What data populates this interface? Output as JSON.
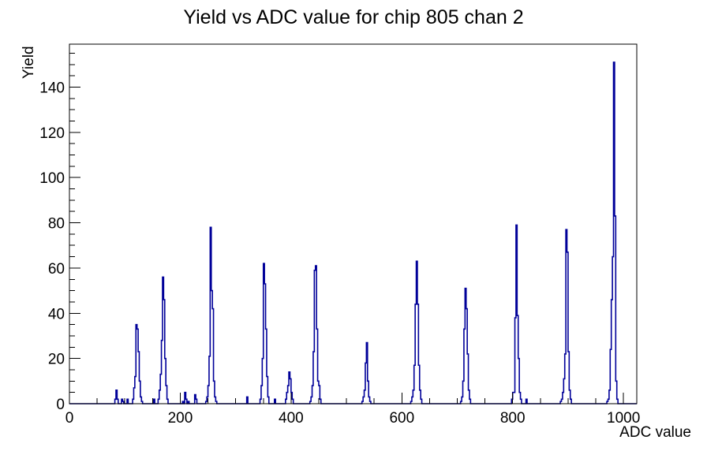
{
  "title": "Yield vs ADC value for chip 805 chan 2",
  "chart_data": {
    "type": "bar",
    "title": "Yield vs ADC value for chip 805 chan 2",
    "xlabel": "ADC value",
    "ylabel": "Yield",
    "xlim": [
      0,
      1024
    ],
    "ylim": [
      0,
      159
    ],
    "x_major_ticks": [
      0,
      200,
      400,
      600,
      800,
      1000
    ],
    "x_minor_step": 50,
    "y_major_ticks": [
      0,
      20,
      40,
      60,
      80,
      100,
      120,
      140
    ],
    "y_minor_step": 5,
    "grid": "off",
    "legend": "none",
    "bin_width": 2,
    "line_color": "#000099",
    "frame_color": "#000000",
    "bins": [
      [
        82,
        2
      ],
      [
        84,
        6
      ],
      [
        86,
        2
      ],
      [
        94,
        2
      ],
      [
        96,
        1
      ],
      [
        104,
        2
      ],
      [
        114,
        2
      ],
      [
        116,
        7
      ],
      [
        118,
        12
      ],
      [
        120,
        35
      ],
      [
        122,
        33
      ],
      [
        124,
        23
      ],
      [
        126,
        10
      ],
      [
        128,
        3
      ],
      [
        130,
        1
      ],
      [
        152,
        2
      ],
      [
        160,
        2
      ],
      [
        162,
        6
      ],
      [
        164,
        13
      ],
      [
        166,
        28
      ],
      [
        168,
        56
      ],
      [
        170,
        46
      ],
      [
        172,
        20
      ],
      [
        174,
        8
      ],
      [
        176,
        2
      ],
      [
        204,
        1
      ],
      [
        208,
        5
      ],
      [
        210,
        2
      ],
      [
        214,
        1
      ],
      [
        226,
        4
      ],
      [
        228,
        2
      ],
      [
        246,
        1
      ],
      [
        248,
        3
      ],
      [
        250,
        8
      ],
      [
        252,
        21
      ],
      [
        254,
        78
      ],
      [
        256,
        50
      ],
      [
        258,
        42
      ],
      [
        260,
        10
      ],
      [
        262,
        3
      ],
      [
        264,
        1
      ],
      [
        320,
        3
      ],
      [
        344,
        2
      ],
      [
        346,
        8
      ],
      [
        348,
        20
      ],
      [
        350,
        62
      ],
      [
        352,
        53
      ],
      [
        354,
        33
      ],
      [
        356,
        12
      ],
      [
        358,
        3
      ],
      [
        370,
        2
      ],
      [
        390,
        2
      ],
      [
        392,
        5
      ],
      [
        394,
        8
      ],
      [
        396,
        14
      ],
      [
        398,
        11
      ],
      [
        400,
        5
      ],
      [
        402,
        2
      ],
      [
        434,
        1
      ],
      [
        436,
        3
      ],
      [
        438,
        8
      ],
      [
        440,
        23
      ],
      [
        442,
        59
      ],
      [
        444,
        61
      ],
      [
        446,
        33
      ],
      [
        448,
        10
      ],
      [
        450,
        8
      ],
      [
        452,
        2
      ],
      [
        528,
        1
      ],
      [
        530,
        3
      ],
      [
        532,
        6
      ],
      [
        534,
        18
      ],
      [
        536,
        27
      ],
      [
        538,
        10
      ],
      [
        540,
        3
      ],
      [
        542,
        1
      ],
      [
        616,
        1
      ],
      [
        618,
        3
      ],
      [
        620,
        6
      ],
      [
        622,
        17
      ],
      [
        624,
        44
      ],
      [
        626,
        63
      ],
      [
        628,
        44
      ],
      [
        630,
        17
      ],
      [
        632,
        6
      ],
      [
        634,
        2
      ],
      [
        706,
        1
      ],
      [
        708,
        3
      ],
      [
        710,
        10
      ],
      [
        712,
        33
      ],
      [
        714,
        51
      ],
      [
        716,
        42
      ],
      [
        718,
        22
      ],
      [
        720,
        6
      ],
      [
        722,
        2
      ],
      [
        798,
        2
      ],
      [
        800,
        5
      ],
      [
        802,
        5
      ],
      [
        804,
        38
      ],
      [
        806,
        79
      ],
      [
        808,
        39
      ],
      [
        810,
        20
      ],
      [
        812,
        5
      ],
      [
        814,
        2
      ],
      [
        824,
        2
      ],
      [
        886,
        1
      ],
      [
        888,
        2
      ],
      [
        890,
        5
      ],
      [
        892,
        11
      ],
      [
        894,
        22
      ],
      [
        896,
        77
      ],
      [
        898,
        67
      ],
      [
        900,
        23
      ],
      [
        902,
        6
      ],
      [
        904,
        2
      ],
      [
        970,
        1
      ],
      [
        972,
        2
      ],
      [
        974,
        6
      ],
      [
        976,
        24
      ],
      [
        978,
        46
      ],
      [
        980,
        65
      ],
      [
        982,
        151
      ],
      [
        984,
        83
      ],
      [
        986,
        10
      ],
      [
        988,
        2
      ]
    ]
  }
}
